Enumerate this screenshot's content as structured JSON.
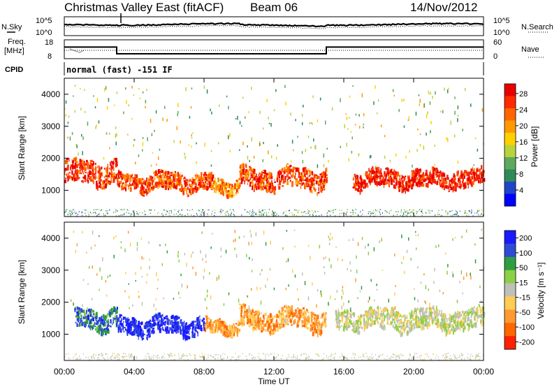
{
  "header": {
    "title": "Christmas Valley East (fitACF)",
    "beam": "Beam 06",
    "date": "14/Nov/2012"
  },
  "noise_panel": {
    "left_label": "N.Sky",
    "right_label": "N.Search",
    "left_ticks": [
      "10^5",
      "10^0"
    ],
    "right_ticks": [
      "10^5",
      "10^0"
    ]
  },
  "freq_panel": {
    "left_label_line1": "Freq.",
    "left_label_line2": "[MHz]",
    "left_ticks": [
      "18",
      "8"
    ],
    "right_label": "Nave",
    "right_ticks": [
      "60",
      "0"
    ]
  },
  "cpid": {
    "label": "CPID",
    "value": "normal (fast) -151 IF"
  },
  "power_panel": {
    "ylabel": "Slant Range [km]",
    "yticks": [
      "1000",
      "2000",
      "3000",
      "4000"
    ],
    "colorbar_label": "Power [dB]",
    "colorbar_ticks": [
      "4",
      "8",
      "12",
      "16",
      "20",
      "24",
      "28"
    ],
    "colors": [
      "#0000ff",
      "#2244cc",
      "#2e8b57",
      "#5fa85f",
      "#b8d43a",
      "#ffd000",
      "#ff9900",
      "#ff6600",
      "#ff2a00",
      "#e80000"
    ]
  },
  "velocity_panel": {
    "ylabel": "Slant Range [km]",
    "yticks": [
      "1000",
      "2000",
      "3000",
      "4000"
    ],
    "colorbar_label": "Velocity [m s⁻¹]",
    "colorbar_ticks": [
      "200",
      "100",
      "50",
      "15",
      "-15",
      "-50",
      "-100",
      "-200"
    ],
    "colors": [
      "#1a1aff",
      "#2e4bd6",
      "#2e9e3e",
      "#8bd045",
      "#c0c0b8",
      "#ffcc55",
      "#ff9933",
      "#ff6600",
      "#ff2200"
    ]
  },
  "xaxis": {
    "label": "Time UT",
    "ticks": [
      "00:00",
      "04:00",
      "08:00",
      "12:00",
      "16:00",
      "20:00",
      "00:00"
    ]
  },
  "chart_data": {
    "type": "heatmap",
    "title": "Christmas Valley East (fitACF)",
    "panels": [
      {
        "name": "Power",
        "quantity": "Power [dB]",
        "x": "Time UT",
        "xlim": [
          0,
          24
        ],
        "ylim": [
          180,
          4500
        ],
        "color_range": [
          0,
          30
        ],
        "echo_bands": [
          {
            "t_start": 0.0,
            "t_end": 3.0,
            "range_center": 1600,
            "range_width": 700,
            "level": 26
          },
          {
            "t_start": 3.0,
            "t_end": 8.5,
            "range_center": 1300,
            "range_width": 500,
            "level": 24
          },
          {
            "t_start": 8.5,
            "t_end": 10.0,
            "range_center": 1200,
            "range_width": 400,
            "level": 20
          },
          {
            "t_start": 10.0,
            "t_end": 15.0,
            "range_center": 1400,
            "range_width": 600,
            "level": 25
          },
          {
            "t_start": 16.5,
            "t_end": 24.0,
            "range_center": 1400,
            "range_width": 500,
            "level": 27
          }
        ]
      },
      {
        "name": "Velocity",
        "quantity": "Velocity [m s-1]",
        "x": "Time UT",
        "xlim": [
          0,
          24
        ],
        "ylim": [
          180,
          4500
        ],
        "color_range": [
          -200,
          200
        ],
        "echo_bands": [
          {
            "t_start": 0.5,
            "t_end": 3.0,
            "range_center": 1500,
            "range_width": 600,
            "level": 120
          },
          {
            "t_start": 3.0,
            "t_end": 8.0,
            "range_center": 1300,
            "range_width": 500,
            "level": 180
          },
          {
            "t_start": 8.0,
            "t_end": 10.0,
            "range_center": 1300,
            "range_width": 400,
            "level": -90
          },
          {
            "t_start": 10.0,
            "t_end": 15.0,
            "range_center": 1500,
            "range_width": 600,
            "level": -80
          },
          {
            "t_start": 15.5,
            "t_end": 24.0,
            "range_center": 1500,
            "range_width": 600,
            "level": 0
          }
        ]
      }
    ],
    "frequency_mhz": [
      {
        "t_start": 0,
        "t_end": 3,
        "value": 14.5
      },
      {
        "t_start": 3,
        "t_end": 15,
        "value": 10.5
      },
      {
        "t_start": 15,
        "t_end": 24,
        "value": 14.5
      }
    ]
  }
}
